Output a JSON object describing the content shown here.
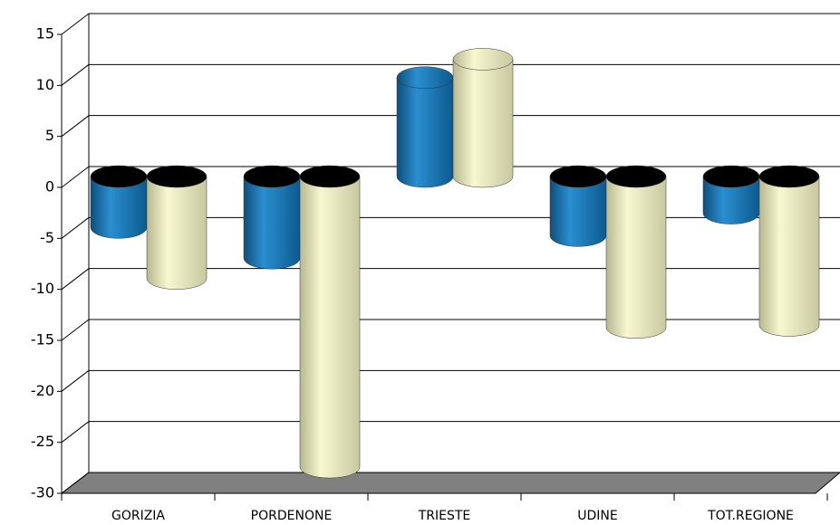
{
  "chart_data": {
    "type": "bar3d",
    "categories": [
      "GORIZIA",
      "PORDENONE",
      "TRIESTE",
      "UDINE",
      "TOT.REGIONE"
    ],
    "series": [
      {
        "color": "#1a7ab8",
        "values": [
          -5,
          -8,
          9.7,
          -5.8,
          -3.6
        ]
      },
      {
        "color": "#eeeeb8",
        "values": [
          -10,
          -28.5,
          11.5,
          -14.8,
          -14.6
        ]
      }
    ],
    "ylim": [
      -30,
      15
    ],
    "yticks": [
      -30,
      -25,
      -20,
      -15,
      -10,
      -5,
      0,
      5,
      10,
      15
    ],
    "grid": true
  }
}
